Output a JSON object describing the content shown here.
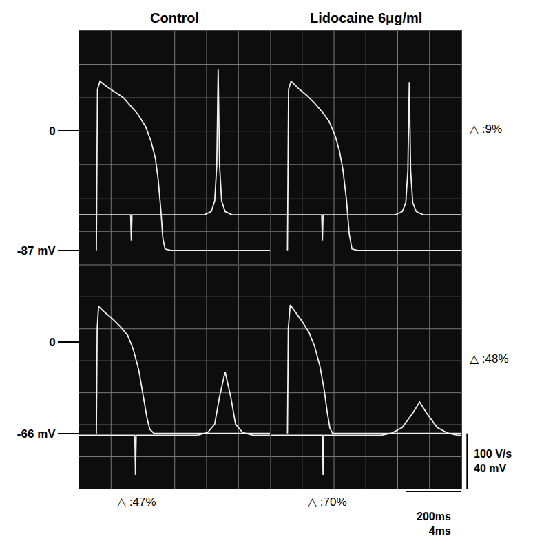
{
  "chart_data": [
    {
      "type": "line",
      "title": "Control",
      "xlim": [
        0,
        690
      ],
      "x2lim": [
        0,
        13.75
      ],
      "ylim": [
        -97.5,
        72.5
      ],
      "y2lim": [
        -91,
        334
      ],
      "yticks": [
        {
          "value": 0,
          "label": "0"
        },
        {
          "value": -87,
          "label": "-87 mV"
        }
      ],
      "tick_labels": "y",
      "series": [
        {
          "color": "#f0f0f0",
          "x": [
            62,
            63,
            64,
            66,
            75,
            100,
            130,
            160,
            190,
            212,
            240,
            260,
            275,
            285,
            295,
            302,
            310,
            330,
            690
          ],
          "values": [
            -87,
            -40,
            0,
            30,
            36,
            32,
            28,
            24,
            17,
            12,
            3,
            -8,
            -20,
            -35,
            -58,
            -78,
            -86,
            -87,
            -87
          ]
        },
        {
          "axis": "y2",
          "color": "#f0f0f0",
          "x": [
            0,
            3.7,
            3.75,
            3.8,
            9.0,
            9.5,
            9.75,
            9.9,
            10.0,
            10.1,
            10.25,
            10.5,
            11.0,
            13.75
          ],
          "values": [
            0,
            0,
            -47,
            0,
            0,
            6,
            25,
            90,
            265,
            90,
            25,
            6,
            0,
            0
          ]
        }
      ]
    },
    {
      "type": "line",
      "title": "Lidocaine 6μg/ml",
      "xlim": [
        0,
        690
      ],
      "x2lim": [
        0,
        13.75
      ],
      "ylim": [
        -97.5,
        72.5
      ],
      "y2lim": [
        -91,
        334
      ],
      "tick_labels": false,
      "side_note": "△ :9%",
      "series": [
        {
          "color": "#f0f0f0",
          "x": [
            62,
            63,
            64,
            66,
            75,
            100,
            130,
            160,
            190,
            212,
            235,
            250,
            262,
            275,
            285,
            295,
            315,
            690
          ],
          "values": [
            -87,
            -40,
            0,
            30,
            36,
            31,
            26,
            20,
            13,
            7,
            -4,
            -15,
            -28,
            -50,
            -75,
            -86,
            -87,
            -87
          ]
        },
        {
          "axis": "y2",
          "color": "#f0f0f0",
          "x": [
            0,
            3.7,
            3.75,
            3.8,
            9.0,
            9.5,
            9.75,
            9.9,
            10.0,
            10.1,
            10.25,
            10.5,
            11.0,
            13.75
          ],
          "values": [
            0,
            0,
            -47,
            0,
            0,
            6,
            22,
            80,
            241,
            80,
            22,
            6,
            0,
            0
          ]
        }
      ]
    },
    {
      "type": "line",
      "xlim": [
        0,
        690
      ],
      "x2lim": [
        0,
        13.75
      ],
      "ylim": [
        -106,
        56
      ],
      "y2lim": [
        -97,
        309
      ],
      "yticks": [
        {
          "value": 0,
          "label": "0"
        },
        {
          "value": -66,
          "label": "-66 mV"
        }
      ],
      "tick_labels": "y",
      "caption": "△ :47%",
      "series": [
        {
          "color": "#f0f0f0",
          "x": [
            62,
            63,
            65,
            70,
            90,
            120,
            150,
            175,
            195,
            215,
            230,
            245,
            255,
            270,
            690
          ],
          "values": [
            -66,
            -30,
            10,
            26,
            22,
            17,
            11,
            5,
            -5,
            -20,
            -38,
            -55,
            -63,
            -66,
            -66
          ]
        },
        {
          "axis": "y2",
          "color": "#f0f0f0",
          "x": [
            0,
            4.0,
            4.05,
            4.1,
            8.5,
            9.25,
            9.75,
            10.1,
            10.5,
            10.9,
            11.25,
            11.75,
            12.5,
            13.75
          ],
          "values": [
            0,
            0,
            -72,
            0,
            0,
            5,
            20,
            70,
            115,
            70,
            20,
            5,
            0,
            0
          ]
        }
      ]
    },
    {
      "type": "line",
      "xlim": [
        0,
        690
      ],
      "x2lim": [
        0,
        13.75
      ],
      "ylim": [
        -106,
        56
      ],
      "y2lim": [
        -97,
        309
      ],
      "tick_labels": false,
      "side_note": "△ :48%",
      "caption": "△ :70%",
      "series": [
        {
          "color": "#f0f0f0",
          "x": [
            62,
            63,
            65,
            72,
            90,
            115,
            140,
            160,
            180,
            195,
            205,
            215,
            225,
            690
          ],
          "values": [
            -66,
            -30,
            10,
            27,
            22,
            15,
            7,
            -3,
            -18,
            -35,
            -50,
            -62,
            -66,
            -66
          ]
        },
        {
          "axis": "y2",
          "color": "#f0f0f0",
          "x": [
            0,
            3.75,
            3.8,
            3.85,
            8.0,
            8.75,
            9.5,
            10.25,
            10.75,
            11.25,
            12.0,
            12.75,
            13.5,
            13.75
          ],
          "values": [
            0,
            0,
            -72,
            0,
            0,
            4,
            14,
            40,
            60,
            40,
            14,
            4,
            0,
            0
          ]
        }
      ]
    }
  ],
  "scale_bar": {
    "vertical": [
      {
        "value": 100,
        "label": "100 V/s"
      },
      {
        "value": 40,
        "label": "40 mV"
      }
    ],
    "horizontal": [
      {
        "value": 200,
        "label": "200ms"
      },
      {
        "value": 4,
        "label": "4ms"
      }
    ]
  }
}
